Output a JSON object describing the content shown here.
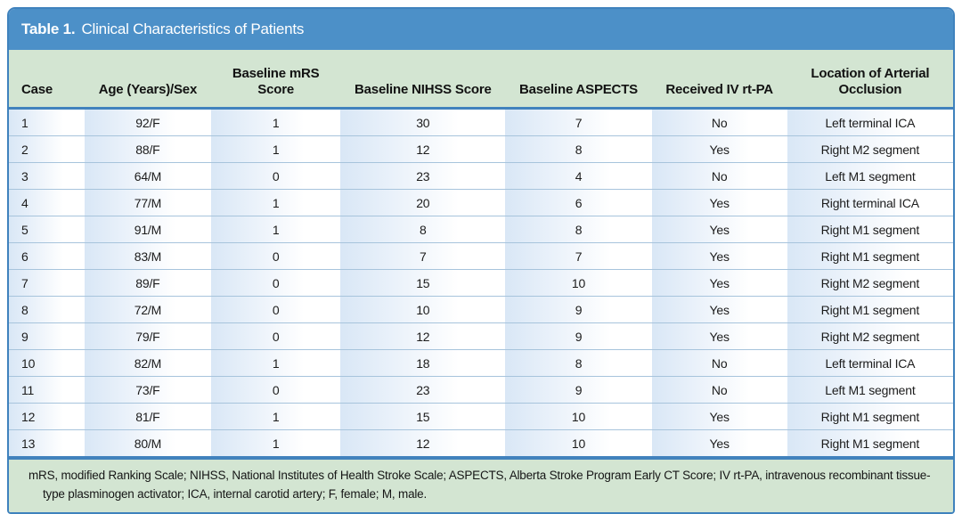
{
  "title": {
    "label": "Table 1.",
    "text": "Clinical Characteristics of Patients"
  },
  "columns": [
    "Case",
    "Age (Years)/Sex",
    "Baseline mRS Score",
    "Baseline NIHSS Score",
    "Baseline ASPECTS",
    "Received IV rt-PA",
    "Location of Arterial Occlusion"
  ],
  "rows": [
    [
      "1",
      "92/F",
      "1",
      "30",
      "7",
      "No",
      "Left terminal ICA"
    ],
    [
      "2",
      "88/F",
      "1",
      "12",
      "8",
      "Yes",
      "Right M2 segment"
    ],
    [
      "3",
      "64/M",
      "0",
      "23",
      "4",
      "No",
      "Left M1 segment"
    ],
    [
      "4",
      "77/M",
      "1",
      "20",
      "6",
      "Yes",
      "Right terminal ICA"
    ],
    [
      "5",
      "91/M",
      "1",
      "8",
      "8",
      "Yes",
      "Right M1 segment"
    ],
    [
      "6",
      "83/M",
      "0",
      "7",
      "7",
      "Yes",
      "Right M1 segment"
    ],
    [
      "7",
      "89/F",
      "0",
      "15",
      "10",
      "Yes",
      "Right M2 segment"
    ],
    [
      "8",
      "72/M",
      "0",
      "10",
      "9",
      "Yes",
      "Right M1 segment"
    ],
    [
      "9",
      "79/F",
      "0",
      "12",
      "9",
      "Yes",
      "Right M2 segment"
    ],
    [
      "10",
      "82/M",
      "1",
      "18",
      "8",
      "No",
      "Left terminal ICA"
    ],
    [
      "11",
      "73/F",
      "0",
      "23",
      "9",
      "No",
      "Left M1 segment"
    ],
    [
      "12",
      "81/F",
      "1",
      "15",
      "10",
      "Yes",
      "Right M1 segment"
    ],
    [
      "13",
      "80/M",
      "1",
      "12",
      "10",
      "Yes",
      "Right M1 segment"
    ]
  ],
  "footnote": "mRS, modified Ranking Scale; NIHSS, National Institutes of Health Stroke Scale; ASPECTS, Alberta Stroke Program Early CT Score; IV rt-PA, intravenous recombinant tissue-type plasminogen activator; ICA, internal carotid artery; F, female; M, male.",
  "colors": {
    "title_bar": "#4c90c8",
    "border": "#3f82bd",
    "header_bg": "#d3e5d2",
    "footnote_bg": "#d3e5d2",
    "row_separator": "#a7c4dc",
    "cell_gradient_start": "#d9e7f6",
    "cell_gradient_end": "#ffffff",
    "title_text": "#ffffff",
    "body_text": "#1c1c1c"
  }
}
